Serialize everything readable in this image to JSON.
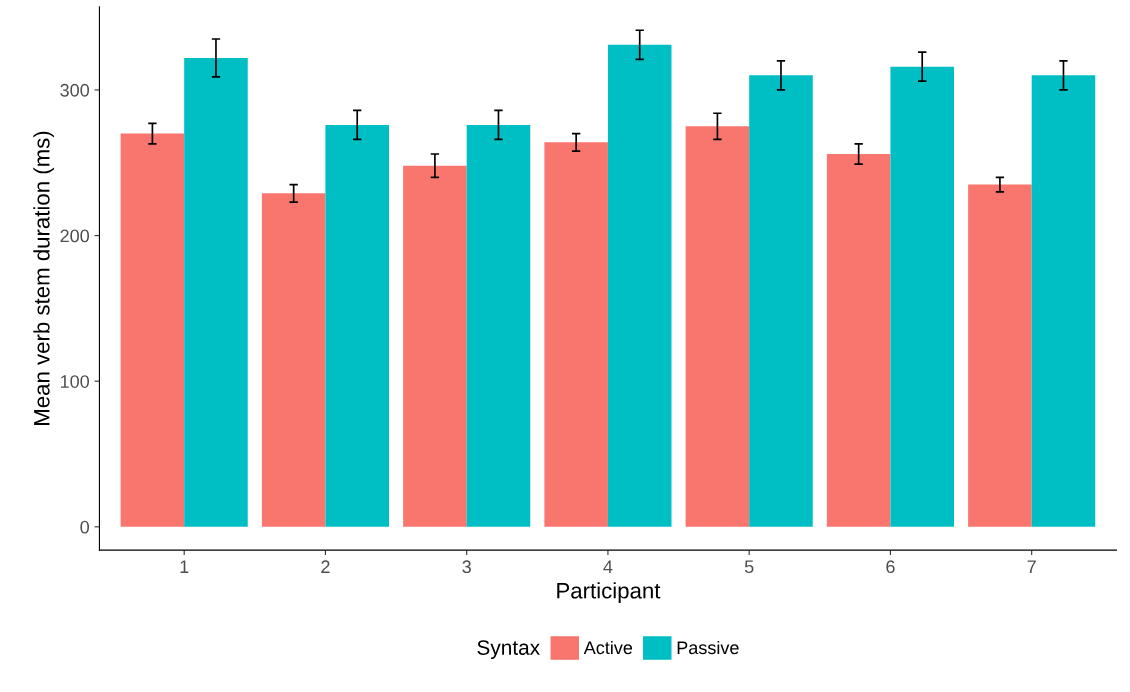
{
  "chart_data": {
    "type": "bar",
    "xlabel": "Participant",
    "ylabel": "Mean verb stem duration (ms)",
    "legend_title": "Syntax",
    "categories": [
      "1",
      "2",
      "3",
      "4",
      "5",
      "6",
      "7"
    ],
    "series": [
      {
        "name": "Active",
        "color": "#f8766d",
        "values": [
          270,
          229,
          248,
          264,
          275,
          256,
          235
        ],
        "errors": [
          7,
          6,
          8,
          6,
          9,
          7,
          5
        ]
      },
      {
        "name": "Passive",
        "color": "#00bfc4",
        "values": [
          322,
          276,
          276,
          331,
          310,
          316,
          310
        ],
        "errors": [
          13,
          10,
          10,
          10,
          10,
          10,
          10
        ]
      }
    ],
    "ylim": [
      -16,
      357
    ],
    "yticks": [
      0,
      100,
      200,
      300
    ],
    "grid": false,
    "legend": "bottom"
  }
}
